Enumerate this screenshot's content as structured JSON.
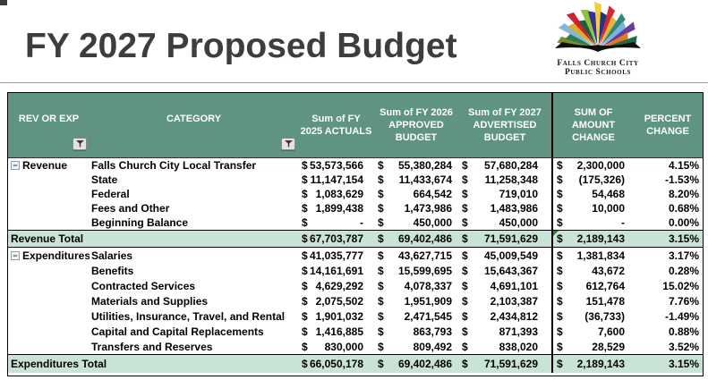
{
  "page": {
    "title": "FY 2027 Proposed Budget"
  },
  "logo": {
    "line1": "Falls Church City",
    "line2": "Public Schools"
  },
  "colors": {
    "header_bg": "#5E9480",
    "total_row_bg": "#C9E3D7",
    "flag_green": "#3a7d44",
    "logo_spikes": [
      "#7c8c2e",
      "#2e7d4f",
      "#85b7dd",
      "#d9b02c",
      "#cf2030",
      "#1f5c3d",
      "#8fc33a",
      "#3b2f8f",
      "#f2cf3a",
      "#24367f",
      "#d42a2e",
      "#e2b63a",
      "#2a8a80",
      "#7fb2d9",
      "#6a3d9a",
      "#e87722",
      "#1f6b44"
    ]
  },
  "table": {
    "currency_symbol": "$",
    "collapse_glyph": "−",
    "headers": {
      "rev_or_exp": "REV OR EXP",
      "category": "CATEGORY",
      "fy2025": "Sum of FY\n2025 ACTUALS",
      "fy2026": "Sum of FY 2026\nAPPROVED\nBUDGET",
      "fy2027": "Sum of FY 2027\nADVERTISED\nBUDGET",
      "amount_change": "SUM OF\nAMOUNT\nCHANGE",
      "percent_change": "PERCENT\nCHANGE"
    },
    "rows": [
      {
        "type": "data",
        "section": "rev",
        "group": "Revenue",
        "category": "Falls Church City Local Transfer",
        "fy2025": "53,573,566",
        "fy2026": "55,380,284",
        "fy2027": "57,680,284",
        "change": "2,300,000",
        "pct": "4.15%"
      },
      {
        "type": "data",
        "section": "rev",
        "group": "",
        "category": "State",
        "fy2025": "11,147,154",
        "fy2026": "11,433,674",
        "fy2027": "11,258,348",
        "change": "(175,326)",
        "pct": "-1.53%"
      },
      {
        "type": "data",
        "section": "rev",
        "group": "",
        "category": "Federal",
        "fy2025": "1,083,629",
        "fy2026": "664,542",
        "fy2027": "719,010",
        "change": "54,468",
        "pct": "8.20%"
      },
      {
        "type": "data",
        "section": "rev",
        "group": "",
        "category": "Fees and Other",
        "fy2025": "1,899,438",
        "fy2026": "1,473,986",
        "fy2027": "1,483,986",
        "change": "10,000",
        "pct": "0.68%"
      },
      {
        "type": "data",
        "section": "rev",
        "group": "",
        "category": "Beginning Balance",
        "fy2025": "-",
        "fy2026": "450,000",
        "fy2027": "450,000",
        "change": "-",
        "pct": "0.00%"
      },
      {
        "type": "total",
        "label": "Revenue Total",
        "fy2025": "67,703,787",
        "fy2026": "69,402,486",
        "fy2027": "71,591,629",
        "change": "2,189,143",
        "pct": "3.15%",
        "flag": true
      },
      {
        "type": "data",
        "section": "exp",
        "group": "Expenditures",
        "category": "Salaries",
        "fy2025": "41,035,777",
        "fy2026": "43,627,715",
        "fy2027": "45,009,549",
        "change": "1,381,834",
        "pct": "3.17%"
      },
      {
        "type": "data",
        "section": "exp",
        "group": "",
        "category": "Benefits",
        "fy2025": "14,161,691",
        "fy2026": "15,599,695",
        "fy2027": "15,643,367",
        "change": "43,672",
        "pct": "0.28%"
      },
      {
        "type": "data",
        "section": "exp",
        "group": "",
        "category": "Contracted Services",
        "fy2025": "4,629,292",
        "fy2026": "4,078,337",
        "fy2027": "4,691,101",
        "change": "612,764",
        "pct": "15.02%"
      },
      {
        "type": "data",
        "section": "exp",
        "group": "",
        "category": "Materials and Supplies",
        "fy2025": "2,075,502",
        "fy2026": "1,951,909",
        "fy2027": "2,103,387",
        "change": "151,478",
        "pct": "7.76%"
      },
      {
        "type": "data",
        "section": "exp",
        "group": "",
        "category": "Utilities, Insurance, Travel, and Rental",
        "fy2025": "1,901,032",
        "fy2026": "2,471,545",
        "fy2027": "2,434,812",
        "change": "(36,733)",
        "pct": "-1.49%"
      },
      {
        "type": "data",
        "section": "exp",
        "group": "",
        "category": "Capital and Capital Replacements",
        "fy2025": "1,416,885",
        "fy2026": "863,793",
        "fy2027": "871,393",
        "change": "7,600",
        "pct": "0.88%"
      },
      {
        "type": "data",
        "section": "exp",
        "group": "",
        "category": "Transfers and Reserves",
        "fy2025": "830,000",
        "fy2026": "809,492",
        "fy2027": "838,020",
        "change": "28,529",
        "pct": "3.52%"
      },
      {
        "type": "total",
        "label": "Expenditures Total",
        "fy2025": "66,050,178",
        "fy2026": "69,402,486",
        "fy2027": "71,591,629",
        "change": "2,189,143",
        "pct": "3.15%",
        "last": true
      }
    ]
  }
}
